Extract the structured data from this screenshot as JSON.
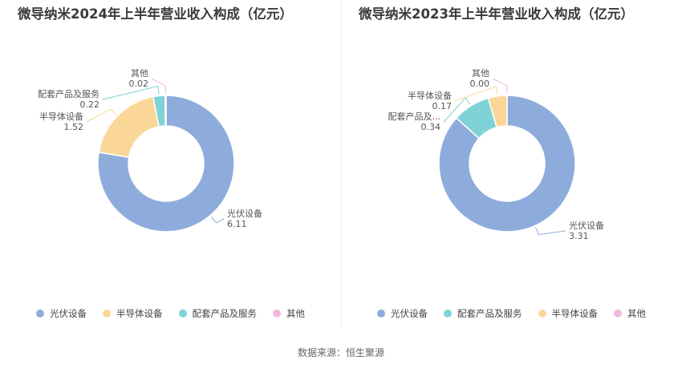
{
  "source": "数据来源：恒生聚源",
  "chart_data": [
    {
      "type": "pie",
      "title": "微导纳米2024年上半年营业收入构成（亿元）",
      "slices": [
        {
          "name": "光伏设备",
          "value": 6.11,
          "label": "6.11",
          "color": "#8eacdb"
        },
        {
          "name": "半导体设备",
          "value": 1.52,
          "label": "1.52",
          "color": "#fad799"
        },
        {
          "name": "配套产品及服务",
          "value": 0.22,
          "label": "0.22",
          "color": "#7fd3d6"
        },
        {
          "name": "其他",
          "value": 0.02,
          "label": "0.02",
          "color": "#f0b9de"
        }
      ],
      "legend": [
        {
          "name": "光伏设备",
          "color": "#8eacdb"
        },
        {
          "name": "半导体设备",
          "color": "#fad799"
        },
        {
          "name": "配套产品及服务",
          "color": "#7fd3d6"
        },
        {
          "name": "其他",
          "color": "#f0b9de"
        }
      ]
    },
    {
      "type": "pie",
      "title": "微导纳米2023年上半年营业收入构成（亿元）",
      "slices": [
        {
          "name": "光伏设备",
          "value": 3.31,
          "label": "3.31",
          "color": "#8eacdb"
        },
        {
          "name": "配套产品及...",
          "value": 0.34,
          "label": "0.34",
          "color": "#7fd3d6"
        },
        {
          "name": "半导体设备",
          "value": 0.17,
          "label": "0.17",
          "color": "#fad799"
        },
        {
          "name": "其他",
          "value": 0.0,
          "label": "0.00",
          "color": "#f0b9de"
        }
      ],
      "legend": [
        {
          "name": "光伏设备",
          "color": "#8eacdb"
        },
        {
          "name": "配套产品及服务",
          "color": "#7fd3d6"
        },
        {
          "name": "半导体设备",
          "color": "#fad799"
        },
        {
          "name": "其他",
          "color": "#f0b9de"
        }
      ]
    }
  ]
}
